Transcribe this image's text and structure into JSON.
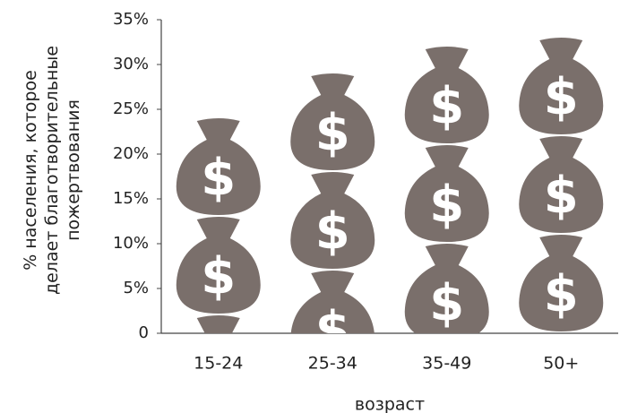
{
  "chart_data": {
    "type": "pictograph",
    "ylabel": [
      "% населения, которое",
      "делает благотворительные",
      "пожертвования"
    ],
    "xlabel": "возраст",
    "categories": [
      "15-24",
      "25-34",
      "35-49",
      "50+"
    ],
    "values": [
      24,
      29,
      32,
      33
    ],
    "icon_text": "$",
    "color": "#7a6f6b",
    "ylim": [
      0,
      35
    ],
    "yticks": [
      0,
      {
        "value": 5,
        "label": "5%"
      },
      {
        "value": 10,
        "label": "10%"
      },
      {
        "value": 15,
        "label": "15%"
      },
      {
        "value": 20,
        "label": "20%"
      },
      {
        "value": 25,
        "label": "25%"
      },
      {
        "value": 30,
        "label": "30%"
      },
      {
        "value": 35,
        "label": "35%"
      }
    ]
  }
}
